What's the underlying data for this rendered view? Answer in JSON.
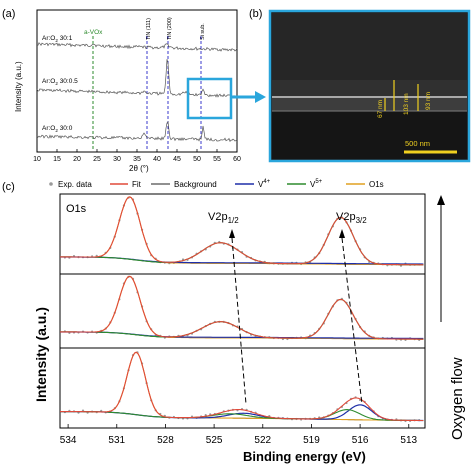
{
  "panel_labels": {
    "a": "(a)",
    "b": "(b)",
    "c": "(c)"
  },
  "panel_a": {
    "ylabel": "Intensity (a.u.)",
    "xlabel": "2θ (°)",
    "xticks": [
      "10",
      "15",
      "20",
      "25",
      "30",
      "35",
      "40",
      "45",
      "50",
      "55",
      "60"
    ],
    "trace_labels": [
      "Ar:O2 30:1",
      "Ar:O2 30:0.5",
      "Ar:O2 30:0"
    ],
    "annotations": {
      "avox": "a-VOx",
      "tin111": "TiN (111)",
      "tin200": "TiN (200)",
      "sisub": "Si sub."
    },
    "colors": {
      "avox": "#2e8b2e",
      "tin": "#3a3acc",
      "si": "#333333",
      "highlight": "#2aa6dc"
    }
  },
  "panel_b": {
    "measurements": [
      "67 nm",
      "103 nm",
      "93 nm"
    ],
    "scale_bar": "500 nm",
    "colors": {
      "frame": "#2aa6dc",
      "labels": "#f0d020"
    }
  },
  "panel_c": {
    "legend": {
      "exp": "Exp. data",
      "fit": "Fit",
      "background": "Background",
      "v4": "V4+",
      "v5": "V5+",
      "o1s": "O1s"
    },
    "peak_labels": {
      "o1s": "O1s",
      "v2p12": "V2p1/2",
      "v2p32": "V2p3/2"
    },
    "ylabel": "Intensity (a.u.)",
    "xlabel": "Binding energy (eV)",
    "xticks": [
      "534",
      "531",
      "528",
      "525",
      "522",
      "519",
      "516",
      "513"
    ],
    "side_label": "Oxygen flow",
    "colors": {
      "exp": "#9a9a9a",
      "fit": "#e04a3a",
      "background": "#222222",
      "v4": "#1f2fa8",
      "v5": "#2e8b2e",
      "o1s": "#e0a020"
    }
  },
  "chart_data": [
    {
      "type": "line",
      "title": "",
      "xlabel": "2θ (°)",
      "ylabel": "Intensity (a.u.)",
      "xlim": [
        10,
        60
      ],
      "grid": false,
      "series": [
        {
          "name": "Ar:O2 30:1",
          "x": [
            10,
            20,
            30,
            40,
            42.6,
            45,
            50,
            51.5,
            55,
            60
          ],
          "y": [
            3.2,
            3.1,
            3.0,
            3.0,
            3.15,
            3.0,
            3.0,
            3.0,
            3.0,
            3.0
          ]
        },
        {
          "name": "Ar:O2 30:0.5",
          "x": [
            10,
            20,
            30,
            36.7,
            40,
            42.6,
            45,
            50,
            51.5,
            55,
            60
          ],
          "y": [
            2.2,
            2.1,
            2.0,
            2.0,
            2.0,
            2.9,
            2.0,
            2.0,
            2.05,
            2.0,
            2.0
          ]
        },
        {
          "name": "Ar:O2 30:0",
          "x": [
            10,
            20,
            30,
            36.7,
            40,
            42.6,
            45,
            50,
            51.5,
            55,
            60
          ],
          "y": [
            1.1,
            1.05,
            1.0,
            1.1,
            1.0,
            1.4,
            1.0,
            1.0,
            1.1,
            1.0,
            1.0
          ]
        }
      ]
    },
    {
      "type": "line",
      "title": "",
      "xlabel": "Binding energy (eV)",
      "ylabel": "Intensity (a.u.)",
      "xlim": [
        534.5,
        512
      ],
      "x_reversed": true,
      "series": [
        {
          "name": "O1s (top)",
          "center": 530.2,
          "height": 1.0
        },
        {
          "name": "V2p1/2 (top)",
          "center": 524.6,
          "height": 0.35
        },
        {
          "name": "V2p3/2 (top)",
          "center": 517.2,
          "height": 0.75
        },
        {
          "name": "O1s (middle)",
          "center": 530.2,
          "height": 1.0
        },
        {
          "name": "V2p1/2 (middle)",
          "center": 524.6,
          "height": 0.3
        },
        {
          "name": "V2p3/2 (middle)",
          "center": 517.2,
          "height": 0.7
        },
        {
          "name": "O1s (bottom)",
          "center": 529.8,
          "height": 1.0
        },
        {
          "name": "V2p1/2 (bottom)",
          "center": 523.8,
          "height": 0.15
        },
        {
          "name": "V2p3/2 (bottom)",
          "center": 516.2,
          "height": 0.4
        }
      ]
    }
  ]
}
